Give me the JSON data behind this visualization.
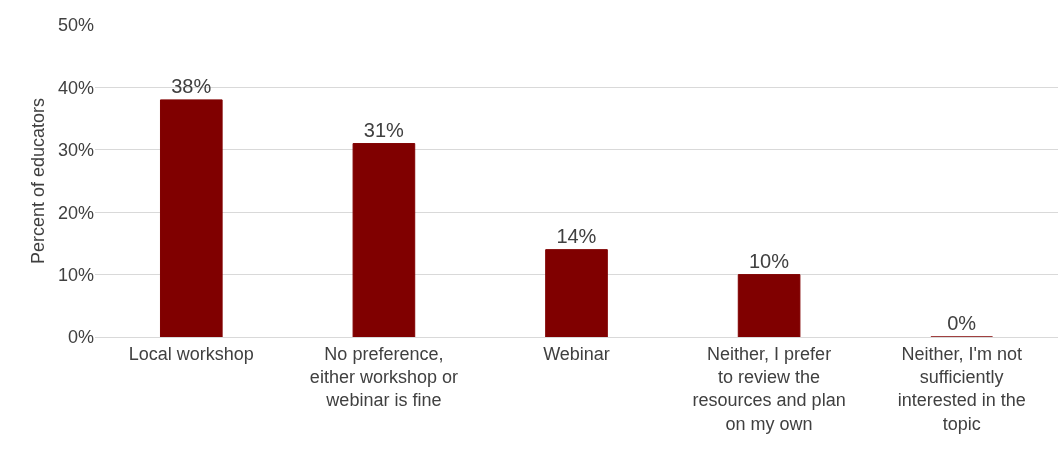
{
  "chart_data": {
    "type": "bar",
    "ylabel": "Percent of educators",
    "categories": [
      "Local workshop",
      "No preference, either workshop or webinar is fine",
      "Webinar",
      "Neither, I prefer to review the resources and plan on my own",
      "Neither, I'm not sufficiently interested in the topic"
    ],
    "values": [
      38,
      31,
      14,
      10,
      0
    ],
    "value_labels": [
      "38%",
      "31%",
      "14%",
      "10%",
      "0%"
    ],
    "color": "#800000",
    "ylim": [
      0,
      50
    ],
    "yticks": [
      {
        "value": 0,
        "label": "0%"
      },
      {
        "value": 10,
        "label": "10%"
      },
      {
        "value": 20,
        "label": "20%"
      },
      {
        "value": 30,
        "label": "30%"
      },
      {
        "value": 40,
        "label": "40%"
      },
      {
        "value": 50,
        "label": "50%"
      }
    ],
    "grid": "y",
    "legend": false
  }
}
